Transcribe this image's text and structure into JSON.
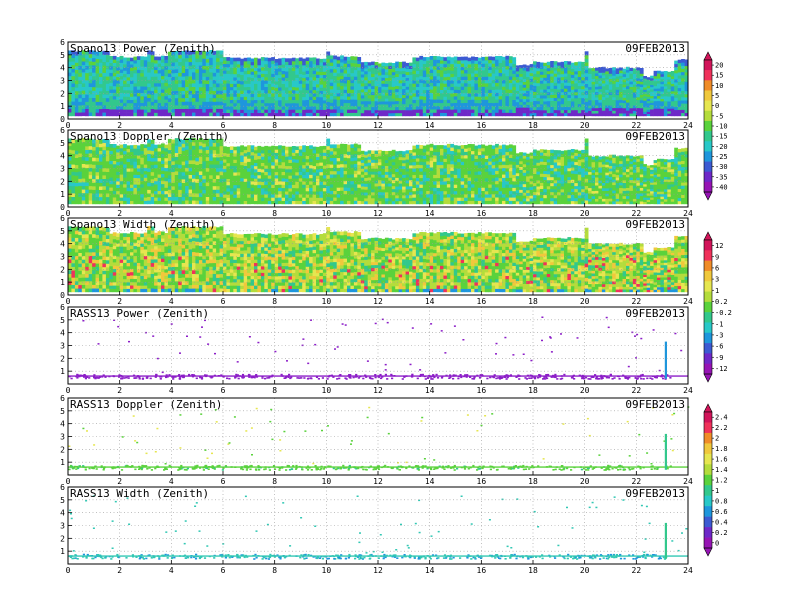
{
  "date_label": "09FEB2013",
  "chart_data": [
    {
      "type": "heatmap",
      "title": "Spano13 Power (Zenith)",
      "date": "09FEB2013",
      "x_ticks": [
        0,
        2,
        4,
        6,
        8,
        10,
        12,
        14,
        16,
        18,
        20,
        22,
        24
      ],
      "y_ticks": [
        0,
        1,
        2,
        3,
        4,
        5,
        6
      ],
      "xlim": [
        0,
        24
      ],
      "ylim": [
        0,
        6
      ],
      "grid": true,
      "pattern": "power"
    },
    {
      "type": "heatmap",
      "title": "Spano13 Doppler (Zenith)",
      "date": "09FEB2013",
      "x_ticks": [
        0,
        2,
        4,
        6,
        8,
        10,
        12,
        14,
        16,
        18,
        20,
        22,
        24
      ],
      "y_ticks": [
        0,
        1,
        2,
        3,
        4,
        5,
        6
      ],
      "xlim": [
        0,
        24
      ],
      "ylim": [
        0,
        6
      ],
      "grid": true,
      "pattern": "doppler"
    },
    {
      "type": "heatmap",
      "title": "Spano13 Width (Zenith)",
      "date": "09FEB2013",
      "x_ticks": [
        0,
        2,
        4,
        6,
        8,
        10,
        12,
        14,
        16,
        18,
        20,
        22,
        24
      ],
      "y_ticks": [
        0,
        1,
        2,
        3,
        4,
        5,
        6
      ],
      "xlim": [
        0,
        24
      ],
      "ylim": [
        0,
        6
      ],
      "grid": true,
      "pattern": "width"
    },
    {
      "type": "scatter",
      "title": "RASS13 Power (Zenith)",
      "date": "09FEB2013",
      "x_ticks": [
        0,
        2,
        4,
        6,
        8,
        10,
        12,
        14,
        16,
        18,
        20,
        22,
        24
      ],
      "y_ticks": [
        1,
        2,
        3,
        4,
        5,
        6
      ],
      "xlim": [
        0,
        24
      ],
      "ylim": [
        0,
        6
      ],
      "grid": true,
      "pattern": "rass_power"
    },
    {
      "type": "scatter",
      "title": "RASS13 Doppler (Zenith)",
      "date": "09FEB2013",
      "x_ticks": [
        0,
        2,
        4,
        6,
        8,
        10,
        12,
        14,
        16,
        18,
        20,
        22,
        24
      ],
      "y_ticks": [
        1,
        2,
        3,
        4,
        5,
        6
      ],
      "xlim": [
        0,
        24
      ],
      "ylim": [
        0,
        6
      ],
      "grid": true,
      "pattern": "rass_doppler"
    },
    {
      "type": "scatter",
      "title": "RASS13 Width (Zenith)",
      "date": "09FEB2013",
      "x_ticks": [
        0,
        2,
        4,
        6,
        8,
        10,
        12,
        14,
        16,
        18,
        20,
        22,
        24
      ],
      "y_ticks": [
        1,
        2,
        3,
        4,
        5,
        6
      ],
      "xlim": [
        0,
        24
      ],
      "ylim": [
        0,
        6
      ],
      "grid": true,
      "pattern": "rass_width"
    }
  ],
  "colorbars": [
    {
      "labels": [
        "20",
        "15",
        "10",
        "5",
        "0",
        "-5",
        "-10",
        "-15",
        "-20",
        "-25",
        "-30",
        "-35",
        "-40"
      ],
      "colors": [
        "#d2145a",
        "#f0325a",
        "#f08c28",
        "#f0c83c",
        "#e6e650",
        "#b4dc3c",
        "#5ad23c",
        "#32c88c",
        "#28c8c8",
        "#1e96dc",
        "#3c5ad2",
        "#6e28c8",
        "#9614b4"
      ]
    },
    {
      "labels": [
        "12",
        "9",
        "6",
        "3",
        "1",
        "0.2",
        "-0.2",
        "-1",
        "-3",
        "-6",
        "-9",
        "-12"
      ],
      "colors": [
        "#d2145a",
        "#f0325a",
        "#f08c28",
        "#f0c83c",
        "#e6e650",
        "#b4dc3c",
        "#5ad23c",
        "#32c88c",
        "#28c8c8",
        "#1e96dc",
        "#3c5ad2",
        "#6e28c8",
        "#9614b4"
      ]
    },
    {
      "labels": [
        "2.4",
        "2.2",
        "2",
        "1.8",
        "1.6",
        "1.4",
        "1.2",
        "1",
        "0.8",
        "0.6",
        "0.4",
        "0.2",
        "0"
      ],
      "colors": [
        "#d2145a",
        "#f0325a",
        "#f08c28",
        "#f0c83c",
        "#e6e650",
        "#b4dc3c",
        "#5ad23c",
        "#32c88c",
        "#28c8c8",
        "#1e96dc",
        "#3c5ad2",
        "#6e28c8",
        "#9614b4"
      ]
    }
  ]
}
